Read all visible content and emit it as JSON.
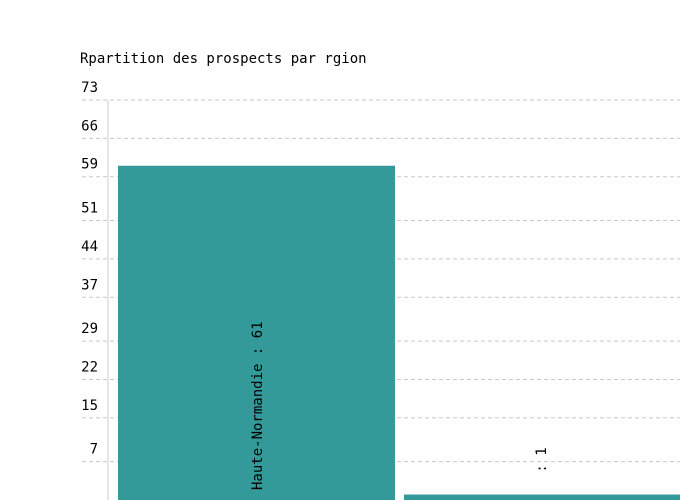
{
  "chart_data": {
    "type": "bar",
    "title": "Rpartition des prospects par rgion",
    "xlabel": "",
    "ylabel": "",
    "categories": [
      "Haute-Normandie",
      ""
    ],
    "values": [
      61,
      1
    ],
    "bar_labels": [
      "Haute-Normandie : 61",
      " : 1"
    ],
    "y_ticks": [
      "7",
      "15",
      "22",
      "29",
      "37",
      "44",
      "51",
      "59",
      "66",
      "73"
    ],
    "ylim": [
      0,
      73
    ],
    "grid": true,
    "legend": "none",
    "colors": {
      "bar": "#339a99",
      "grid": "#c8c8c8",
      "axis": "#cccccc"
    }
  }
}
